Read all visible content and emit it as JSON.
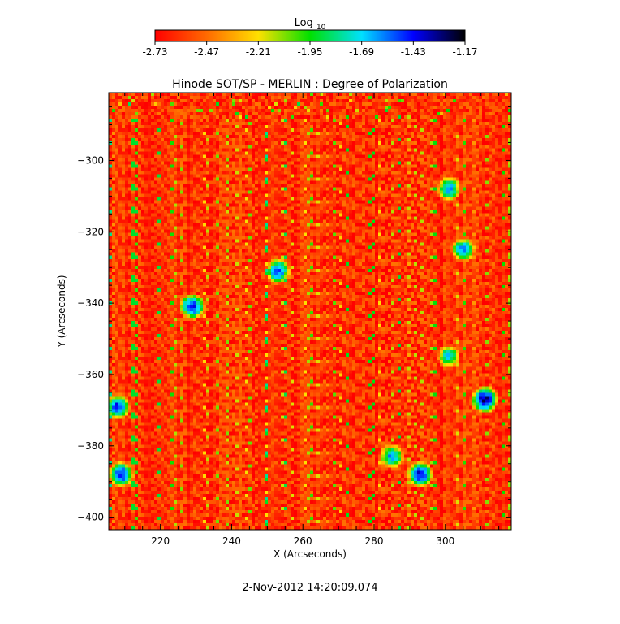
{
  "chart_data": {
    "type": "heatmap",
    "title": "Hinode SOT/SP - MERLIN : Degree of Polarization",
    "xlabel": "X (Arcseconds)",
    "ylabel": "Y (Arcseconds)",
    "xlim": [
      205.5,
      318.5
    ],
    "ylim": [
      -403.5,
      -281
    ],
    "xticks": [
      220,
      240,
      260,
      280,
      300
    ],
    "yticks": [
      -300,
      -320,
      -340,
      -360,
      -380,
      -400
    ],
    "colorbar": {
      "label": "Log10",
      "scale": "log10",
      "range": [
        -2.73,
        -1.17
      ],
      "ticks": [
        "-2.73",
        "-2.47",
        "-2.21",
        "-1.95",
        "-1.69",
        "-1.43",
        "-1.17"
      ],
      "colors": [
        "#ff0000",
        "#ff6a00",
        "#ffe000",
        "#00e000",
        "#00e0ff",
        "#0000ff",
        "#000000"
      ]
    },
    "background_level": -2.6,
    "enhanced_regions": [
      {
        "x": 229,
        "y": -341,
        "peak": -1.4
      },
      {
        "x": 253,
        "y": -331,
        "peak": -1.5
      },
      {
        "x": 301,
        "y": -308,
        "peak": -1.6
      },
      {
        "x": 305,
        "y": -325,
        "peak": -1.6
      },
      {
        "x": 208,
        "y": -369,
        "peak": -1.45
      },
      {
        "x": 311,
        "y": -367,
        "peak": -1.3
      },
      {
        "x": 209,
        "y": -388,
        "peak": -1.45
      },
      {
        "x": 293,
        "y": -388,
        "peak": -1.4
      },
      {
        "x": 285,
        "y": -383,
        "peak": -1.6
      },
      {
        "x": 301,
        "y": -355,
        "peak": -1.7
      }
    ],
    "date": "2-Nov-2012 14:20:09.074"
  }
}
